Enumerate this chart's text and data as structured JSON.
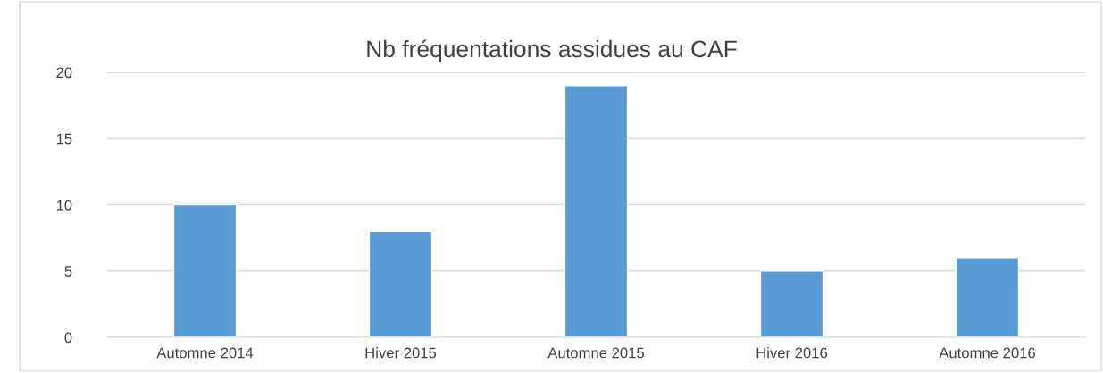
{
  "chart_data": {
    "type": "bar",
    "title": "Nb fréquentations assidues au CAF",
    "categories": [
      "Automne 2014",
      "Hiver 2015",
      "Automne 2015",
      "Hiver 2016",
      "Automne 2016"
    ],
    "values": [
      10,
      8,
      19,
      5,
      6
    ],
    "color": "#5b9bd5",
    "ylim": [
      0,
      20
    ],
    "yticks": [
      0,
      5,
      10,
      15,
      20
    ],
    "grid": "y",
    "legend": false
  }
}
